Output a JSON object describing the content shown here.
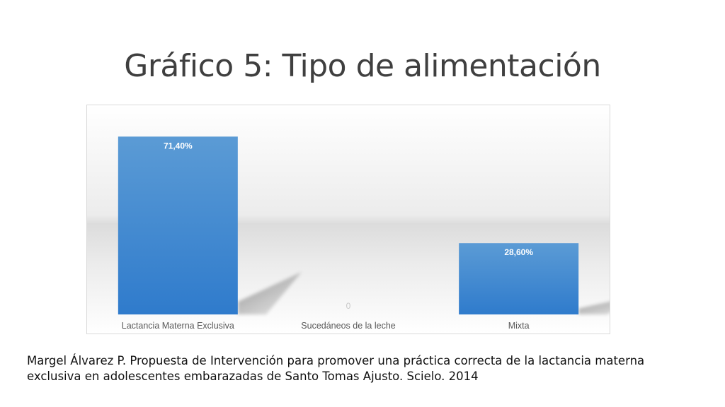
{
  "slide": {
    "title": "Gráfico 5: Tipo de alimentación",
    "citation": "Margel Álvarez P. Propuesta de Intervención para promover una práctica correcta de la lactancia materna exclusiva en adolescentes embarazadas de Santo Tomas Ajusto. Scielo. 2014"
  },
  "chart_data": {
    "type": "bar",
    "title": "",
    "xlabel": "",
    "ylabel": "",
    "categories": [
      "Lactancia Materna Exclusiva",
      "Sucedáneos de la leche",
      "Mixta"
    ],
    "values": [
      71.4,
      0,
      28.6
    ],
    "data_labels": [
      "71,40%",
      "0",
      "28,60%"
    ],
    "ylim": [
      0,
      80
    ],
    "grid": false,
    "legend": "none",
    "colors": {
      "bar_top": "#5b9bd5",
      "bar_bottom": "#2f7bcc",
      "label_inside": "#ffffff",
      "label_zero": "#c8c8c8",
      "category_text": "#595959"
    }
  }
}
